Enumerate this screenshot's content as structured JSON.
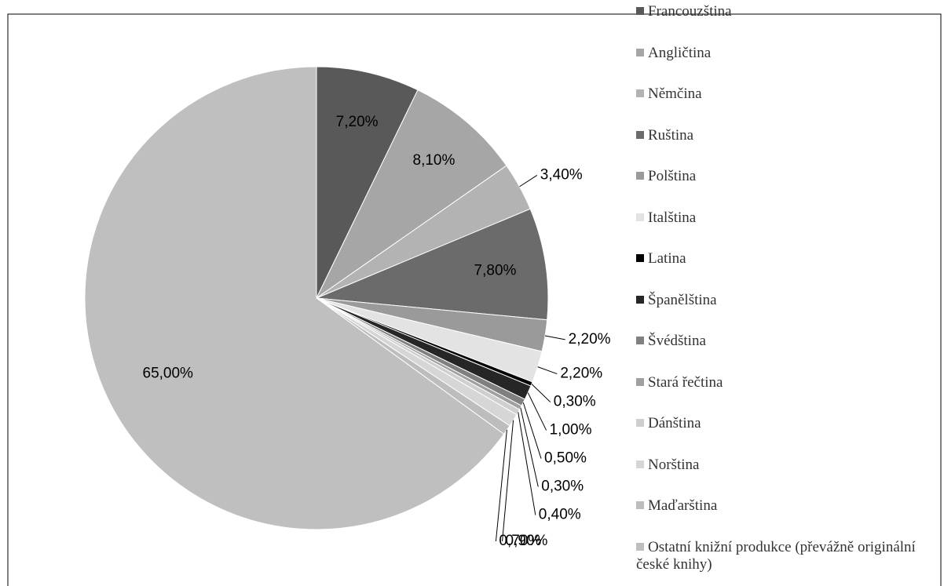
{
  "chart_data": {
    "type": "pie",
    "categories": [
      "Francouzština",
      "Angličtina",
      "Němčina",
      "Ruština",
      "Polština",
      "Italština",
      "Latina",
      "Španělština",
      "Švédština",
      "Stará řečtina",
      "Dánština",
      "Norština",
      "Maďarština",
      "Ostatní knižní produkce (převážně originální české knihy)"
    ],
    "values": [
      7.2,
      8.1,
      3.4,
      7.8,
      2.2,
      2.2,
      0.3,
      1.0,
      0.5,
      0.3,
      0.4,
      0.9,
      0.7,
      65.0
    ],
    "value_labels": [
      "7,20%",
      "8,10%",
      "3,40%",
      "7,80%",
      "2,20%",
      "2,20%",
      "0,30%",
      "1,00%",
      "0,50%",
      "0,30%",
      "0,40%",
      "0,90%",
      "0,70%",
      "65,00%"
    ],
    "colors": [
      "#595959",
      "#a6a6a6",
      "#b3b3b3",
      "#6b6b6b",
      "#9a9a9a",
      "#e3e3e3",
      "#000000",
      "#262626",
      "#808080",
      "#a0a0a0",
      "#cfcfcf",
      "#d6d6d6",
      "#bdbdbd",
      "#bfbfbf"
    ],
    "legend": "right"
  }
}
